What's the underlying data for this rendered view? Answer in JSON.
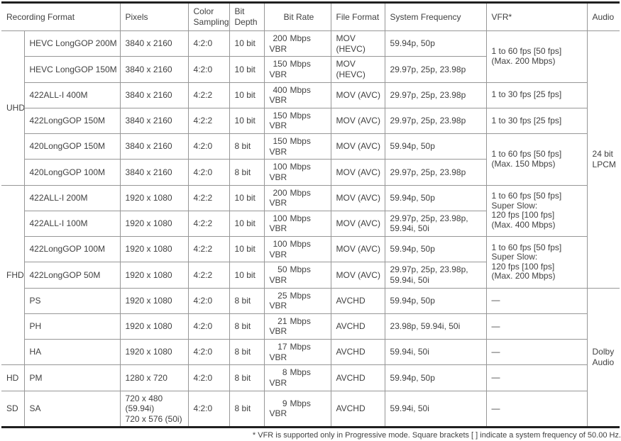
{
  "colors": {
    "text": "#414141",
    "grid_line": "#979797",
    "heavy_line": "#1f1f1f",
    "background": "#ffffff"
  },
  "table": {
    "headers": [
      {
        "key": "recording-format",
        "label": "Recording Format",
        "colspan": 2
      },
      {
        "key": "pixels",
        "label": "Pixels"
      },
      {
        "key": "color-sampling",
        "label": "Color\nSampling"
      },
      {
        "key": "bit-depth",
        "label": "Bit\nDepth"
      },
      {
        "key": "bit-rate",
        "label": "Bit Rate",
        "align": "center"
      },
      {
        "key": "file-format",
        "label": "File Format"
      },
      {
        "key": "system-frequency",
        "label": "System Frequency"
      },
      {
        "key": "vfr",
        "label": "VFR*"
      },
      {
        "key": "audio",
        "label": "Audio"
      }
    ],
    "rows": [
      {
        "group": "UHD",
        "group_span": 6,
        "format": "HEVC LongGOP 200M",
        "pixels": "3840 x 2160",
        "sampling": "4:2:0",
        "depth": "10 bit",
        "rate_value": "200",
        "rate_unit": "Mbps VBR",
        "file": "MOV (HEVC)",
        "freq": "59.94p, 50p",
        "vfr": "1 to 60 fps [50 fps]\n(Max. 200 Mbps)",
        "vfr_span": 2,
        "audio": "24 bit LPCM",
        "audio_span": 10
      },
      {
        "format": "HEVC LongGOP 150M",
        "pixels": "3840 x 2160",
        "sampling": "4:2:0",
        "depth": "10 bit",
        "rate_value": "150",
        "rate_unit": "Mbps VBR",
        "file": "MOV (HEVC)",
        "freq": "29.97p, 25p, 23.98p"
      },
      {
        "format": "422ALL-I 400M",
        "pixels": "3840 x 2160",
        "sampling": "4:2:2",
        "depth": "10 bit",
        "rate_value": "400",
        "rate_unit": "Mbps VBR",
        "file": "MOV (AVC)",
        "freq": "29.97p, 25p, 23.98p",
        "vfr": "1 to 30 fps [25 fps]",
        "vfr_span": 1
      },
      {
        "format": "422LongGOP 150M",
        "pixels": "3840 x 2160",
        "sampling": "4:2:2",
        "depth": "10 bit",
        "rate_value": "150",
        "rate_unit": "Mbps VBR",
        "file": "MOV (AVC)",
        "freq": "29.97p, 25p, 23.98p",
        "vfr": "1 to 30 fps [25 fps]",
        "vfr_span": 1
      },
      {
        "format": "420LongGOP 150M",
        "pixels": "3840 x 2160",
        "sampling": "4:2:0",
        "depth": "8 bit",
        "rate_value": "150",
        "rate_unit": "Mbps VBR",
        "file": "MOV (AVC)",
        "freq": "59.94p, 50p",
        "vfr": "1 to 60 fps [50 fps]\n(Max. 150 Mbps)",
        "vfr_span": 2
      },
      {
        "format": "420LongGOP 100M",
        "pixels": "3840 x 2160",
        "sampling": "4:2:0",
        "depth": "8 bit",
        "rate_value": "100",
        "rate_unit": "Mbps VBR",
        "file": "MOV (AVC)",
        "freq": "29.97p, 25p, 23.98p"
      },
      {
        "group": "FHD",
        "group_span": 7,
        "format": "422ALL-I 200M",
        "pixels": "1920 x 1080",
        "sampling": "4:2:2",
        "depth": "10 bit",
        "rate_value": "200",
        "rate_unit": "Mbps VBR",
        "file": "MOV (AVC)",
        "freq": "59.94p, 50p",
        "vfr": "1 to 60 fps [50 fps]\nSuper Slow:\n120 fps [100 fps]\n(Max. 400 Mbps)",
        "vfr_span": 2
      },
      {
        "format": "422ALL-I 100M",
        "pixels": "1920 x 1080",
        "sampling": "4:2:2",
        "depth": "10 bit",
        "rate_value": "100",
        "rate_unit": "Mbps VBR",
        "file": "MOV (AVC)",
        "freq": "29.97p, 25p, 23.98p,\n59.94i, 50i"
      },
      {
        "format": "422LongGOP 100M",
        "pixels": "1920 x 1080",
        "sampling": "4:2:2",
        "depth": "10 bit",
        "rate_value": "100",
        "rate_unit": "Mbps VBR",
        "file": "MOV (AVC)",
        "freq": "59.94p, 50p",
        "vfr": "1 to 60 fps [50 fps]\nSuper Slow:\n120 fps [100 fps]\n(Max. 200 Mbps)",
        "vfr_span": 2
      },
      {
        "format": "422LongGOP 50M",
        "pixels": "1920 x 1080",
        "sampling": "4:2:2",
        "depth": "10 bit",
        "rate_value": "50",
        "rate_unit": "Mbps VBR",
        "file": "MOV (AVC)",
        "freq": "29.97p, 25p, 23.98p,\n59.94i, 50i"
      },
      {
        "format": "PS",
        "pixels": "1920 x 1080",
        "sampling": "4:2:0",
        "depth": "8 bit",
        "rate_value": "25",
        "rate_unit": "Mbps VBR",
        "file": "AVCHD",
        "freq": "59.94p, 50p",
        "vfr": "—",
        "vfr_span": 1,
        "audio": "Dolby Audio",
        "audio_span": 5
      },
      {
        "format": "PH",
        "pixels": "1920 x 1080",
        "sampling": "4:2:0",
        "depth": "8 bit",
        "rate_value": "21",
        "rate_unit": "Mbps VBR",
        "file": "AVCHD",
        "freq": "23.98p, 59.94i, 50i",
        "vfr": "—",
        "vfr_span": 1
      },
      {
        "format": "HA",
        "pixels": "1920 x 1080",
        "sampling": "4:2:0",
        "depth": "8 bit",
        "rate_value": "17",
        "rate_unit": "Mbps VBR",
        "file": "AVCHD",
        "freq": "59.94i, 50i",
        "vfr": "—",
        "vfr_span": 1
      },
      {
        "group": "HD",
        "group_span": 1,
        "format": "PM",
        "pixels": "1280 x 720",
        "sampling": "4:2:0",
        "depth": "8 bit",
        "rate_value": "8",
        "rate_unit": "Mbps VBR",
        "file": "AVCHD",
        "freq": "59.94p, 50p",
        "vfr": "—",
        "vfr_span": 1
      },
      {
        "group": "SD",
        "group_span": 1,
        "format": "SA",
        "pixels": "720 x 480 (59.94i)\n720 x 576 (50i)",
        "sampling": "4:2:0",
        "depth": "8 bit",
        "rate_value": "9",
        "rate_unit": "Mbps VBR",
        "file": "AVCHD",
        "freq": "59.94i, 50i",
        "vfr": "—",
        "vfr_span": 1
      }
    ],
    "footnote": "* VFR is supported only in Progressive mode. Square brackets [ ] indicate a system frequency of 50.00 Hz."
  }
}
